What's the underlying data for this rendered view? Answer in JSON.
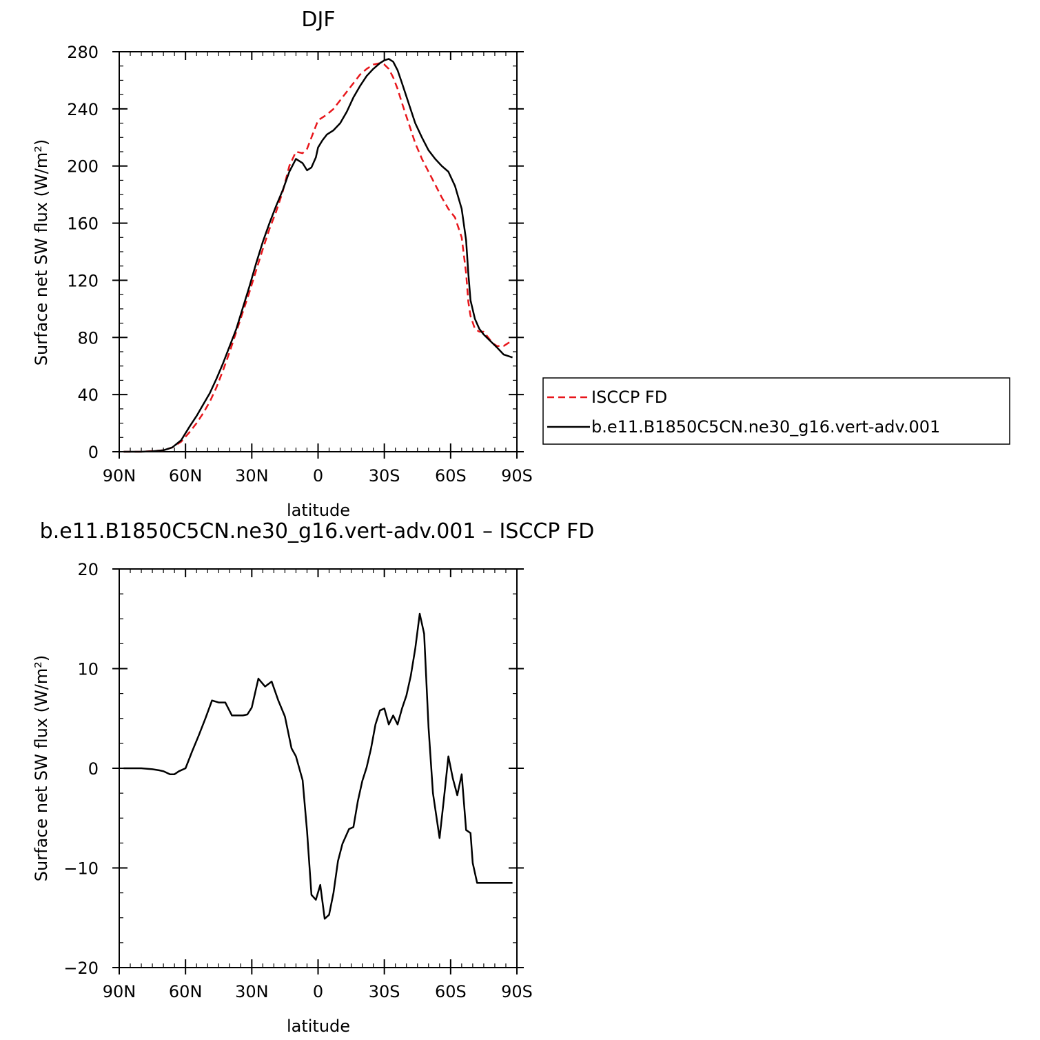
{
  "colors": {
    "obs": "#e8161b",
    "model": "#000000",
    "frame": "#000000"
  },
  "chart_data": [
    {
      "type": "line",
      "title": "DJF",
      "xlabel": "latitude",
      "ylabel": "Surface net SW flux (W/m²)",
      "xlim": [
        -90,
        90
      ],
      "ylim": [
        0,
        280
      ],
      "xticks": [
        {
          "v": -90,
          "label": "90N"
        },
        {
          "v": -60,
          "label": "60N"
        },
        {
          "v": -30,
          "label": "30N"
        },
        {
          "v": 0,
          "label": "0"
        },
        {
          "v": 30,
          "label": "30S"
        },
        {
          "v": 60,
          "label": "60S"
        },
        {
          "v": 90,
          "label": "90S"
        }
      ],
      "yticks": [
        0,
        40,
        80,
        120,
        160,
        200,
        240,
        280
      ],
      "legend": "right",
      "series": [
        {
          "name": "ISCCP FD",
          "style": "dashed",
          "x": [
            -88,
            -85,
            -80,
            -75,
            -70,
            -66,
            -62,
            -58,
            -55,
            -52,
            -49,
            -46,
            -43,
            -40,
            -37,
            -34,
            -31,
            -28,
            -25,
            -22,
            -19,
            -16,
            -13,
            -10,
            -7,
            -5,
            -3,
            -1,
            0,
            2,
            4,
            7,
            10,
            13,
            16,
            19,
            22,
            25,
            28,
            30,
            32,
            34,
            36,
            38,
            41,
            44,
            47,
            50,
            53,
            56,
            59,
            62,
            65,
            67,
            68,
            69,
            71,
            73,
            75,
            77,
            79,
            81,
            84,
            86,
            88
          ],
          "y": [
            0,
            0,
            0,
            0.5,
            1,
            3,
            7,
            14,
            20,
            27,
            35,
            45,
            57,
            70,
            84,
            98,
            112,
            127,
            142,
            156,
            168,
            182,
            200,
            210,
            209,
            212,
            220,
            228,
            232,
            234,
            236,
            240,
            246,
            252,
            258,
            264,
            268,
            271,
            272,
            271,
            268,
            262,
            254,
            244,
            230,
            216,
            205,
            196,
            187,
            178,
            170,
            164,
            150,
            125,
            105,
            95,
            86,
            84,
            84,
            80,
            76,
            74,
            74,
            76,
            78
          ]
        },
        {
          "name": "b.e11.B1850C5CN.ne30_g16.vert-adv.001",
          "style": "solid",
          "x": [
            -88,
            -85,
            -80,
            -75,
            -70,
            -66,
            -62,
            -58,
            -55,
            -52,
            -49,
            -46,
            -43,
            -40,
            -37,
            -34,
            -31,
            -28,
            -25,
            -22,
            -19,
            -16,
            -13,
            -10,
            -7,
            -5,
            -3,
            -1,
            0,
            2,
            4,
            7,
            10,
            13,
            16,
            19,
            22,
            25,
            28,
            30,
            32,
            34,
            36,
            38,
            41,
            44,
            47,
            50,
            53,
            56,
            59,
            62,
            65,
            67,
            68,
            69,
            71,
            73,
            75,
            77,
            79,
            81,
            84,
            86,
            88
          ],
          "y": [
            0,
            0,
            0,
            0.3,
            1,
            3,
            8,
            18,
            25,
            33,
            41,
            51,
            62,
            74,
            86,
            101,
            116,
            132,
            147,
            160,
            172,
            183,
            196,
            205,
            202,
            197,
            199,
            206,
            213,
            218,
            222,
            225,
            230,
            238,
            248,
            256,
            263,
            268,
            272,
            274,
            275,
            273,
            267,
            258,
            244,
            230,
            220,
            211,
            205,
            200,
            196,
            186,
            170,
            148,
            125,
            106,
            93,
            86,
            82,
            79,
            76,
            73,
            68,
            67,
            66
          ]
        }
      ]
    },
    {
      "type": "line",
      "title": "b.e11.B1850C5CN.ne30_g16.vert-adv.001 – ISCCP FD",
      "xlabel": "latitude",
      "ylabel": "Surface net SW flux (W/m²)",
      "xlim": [
        -90,
        90
      ],
      "ylim": [
        -20,
        20
      ],
      "xticks": [
        {
          "v": -90,
          "label": "90N"
        },
        {
          "v": -60,
          "label": "60N"
        },
        {
          "v": -30,
          "label": "30N"
        },
        {
          "v": 0,
          "label": "0"
        },
        {
          "v": 30,
          "label": "30S"
        },
        {
          "v": 60,
          "label": "60S"
        },
        {
          "v": 90,
          "label": "90S"
        }
      ],
      "yticks": [
        -20,
        -10,
        0,
        10,
        20
      ],
      "series": [
        {
          "style": "solid",
          "x": [
            -88,
            -85,
            -80,
            -75,
            -72,
            -70,
            -67,
            -65,
            -63,
            -60,
            -57,
            -54,
            -51,
            -48,
            -45,
            -42,
            -39,
            -36,
            -34,
            -32,
            -30,
            -27,
            -24,
            -21,
            -18,
            -15,
            -12,
            -10,
            -7,
            -5,
            -3,
            -1,
            1,
            3,
            5,
            7,
            9,
            11,
            14,
            16,
            18,
            20,
            22,
            24,
            26,
            28,
            30,
            32,
            34,
            36,
            38,
            40,
            42,
            44,
            46,
            48,
            50,
            52,
            55,
            57,
            59,
            61,
            63,
            65,
            67,
            69,
            70,
            72,
            73,
            74,
            75,
            77,
            78,
            80,
            81,
            82,
            84,
            86,
            88
          ],
          "y": [
            0,
            0,
            0,
            -0.1,
            -0.2,
            -0.3,
            -0.6,
            -0.6,
            -0.3,
            0,
            1.7,
            3.3,
            5,
            6.8,
            6.6,
            6.6,
            5.3,
            5.3,
            5.3,
            5.4,
            6.1,
            9,
            8.2,
            8.7,
            6.8,
            5.2,
            2,
            1.2,
            -1.2,
            -6.3,
            -12.7,
            -13.2,
            -11.7,
            -15.1,
            -14.7,
            -12.5,
            -9.3,
            -7.6,
            -6.1,
            -5.9,
            -3.3,
            -1.3,
            0.1,
            2,
            4.4,
            5.8,
            6,
            4.4,
            5.3,
            4.4,
            6,
            7.3,
            9.3,
            12,
            15.5,
            13.5,
            4.1,
            -2.5,
            -7,
            -3,
            1.2,
            -1,
            -2.7,
            -0.6,
            -6.2,
            -6.5,
            -9.5,
            -11.5,
            -11.5,
            -11.5,
            -11.5,
            -11.5,
            -11.5,
            -11.5,
            -11.5,
            -11.5,
            -11.5,
            -11.5,
            -11.5
          ]
        }
      ]
    }
  ],
  "legend": {
    "items": [
      {
        "label": "ISCCP FD"
      },
      {
        "label": "b.e11.B1850C5CN.ne30_g16.vert-adv.001"
      }
    ]
  }
}
